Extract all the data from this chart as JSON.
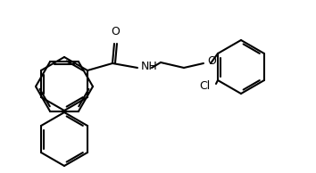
{
  "background_color": "#ffffff",
  "line_color": "#000000",
  "line_width": 1.5,
  "font_size": 9,
  "atoms": {
    "O": "O",
    "NH": "NH",
    "Cl": "Cl",
    "O2": "O"
  }
}
